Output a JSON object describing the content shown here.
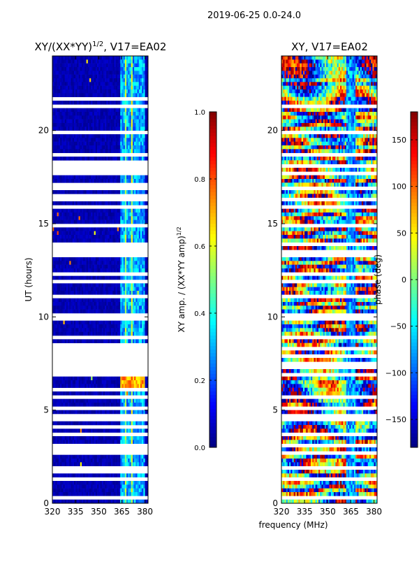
{
  "figure": {
    "title": "2019-06-25 0.0-24.0",
    "xlabel": "frequency (MHz)"
  },
  "colors": {
    "stops": [
      "#00007f",
      "#0000ff",
      "#007fff",
      "#00ffff",
      "#7fff7f",
      "#ffff00",
      "#ff7f00",
      "#ff0000",
      "#7f0000"
    ],
    "gap": "#ffffff"
  },
  "chart_data": [
    {
      "type": "heatmap",
      "title_main": "XY/(XX*YY)",
      "title_exp": "1/2",
      "title_tail": ", V17=EA02",
      "xlabel": "",
      "ylabel": "UT (hours)",
      "xlim": [
        320,
        382
      ],
      "ylim": [
        0,
        24
      ],
      "xticks": [
        320,
        335,
        350,
        365,
        380
      ],
      "yticks": [
        0,
        5,
        10,
        15,
        20
      ],
      "colorbar": {
        "label_main": "XY amp. / (XX*YY amp)",
        "label_exp": "1/2",
        "range": [
          0.0,
          1.0
        ],
        "ticks": [
          "0.0",
          "0.2",
          "0.4",
          "0.6",
          "0.8",
          "1.0"
        ]
      },
      "flagged_hours": [
        0.3,
        1.4,
        1.6,
        1.9,
        2.7,
        2.9,
        3.2,
        3.6,
        4.0,
        4.2,
        4.6,
        5.2,
        5.7,
        6.2,
        6.9,
        7.1,
        7.4,
        7.7,
        7.9,
        8.1,
        8.3,
        8.5,
        8.8,
        9.9,
        10.1,
        11.2,
        11.9,
        12.3,
        13.4,
        13.6,
        13.8,
        14.8,
        15.8,
        16.3,
        16.5,
        16.9,
        17.2,
        17.6,
        17.9,
        18.1,
        18.4,
        18.7,
        19.0,
        19.8,
        21.0,
        21.3,
        21.6,
        22.0
      ],
      "hot_band_mhz": [
        364,
        380
      ],
      "event_hours": [
        6.0,
        6.8
      ]
    },
    {
      "type": "heatmap",
      "title_main": "XY, V17=EA02",
      "title_exp": "",
      "title_tail": "",
      "xlabel": "",
      "ylabel": "",
      "xlim": [
        320,
        382
      ],
      "ylim": [
        0,
        24
      ],
      "xticks": [
        320,
        335,
        350,
        365,
        380
      ],
      "yticks": [
        0,
        5,
        10,
        15,
        20
      ],
      "colorbar": {
        "label_main": "phase (deg)",
        "label_exp": "",
        "range": [
          -180,
          180
        ],
        "ticks": [
          "−150",
          "−100",
          "−50",
          "0",
          "50",
          "100",
          "150"
        ],
        "tick_values": [
          -150,
          -100,
          -50,
          0,
          50,
          100,
          150
        ]
      },
      "flagged_hours": [
        0.3,
        1.4,
        1.9,
        2.7,
        3.2,
        3.6,
        4.0,
        4.6,
        5.2,
        5.7,
        6.9,
        7.4,
        7.9,
        8.3,
        8.8,
        9.9,
        10.1,
        11.2,
        11.9,
        12.3,
        13.4,
        13.8,
        14.8,
        15.8,
        16.3,
        16.9,
        17.6,
        18.1,
        18.7,
        19.0,
        19.8,
        21.0,
        21.3,
        22.0
      ]
    }
  ]
}
